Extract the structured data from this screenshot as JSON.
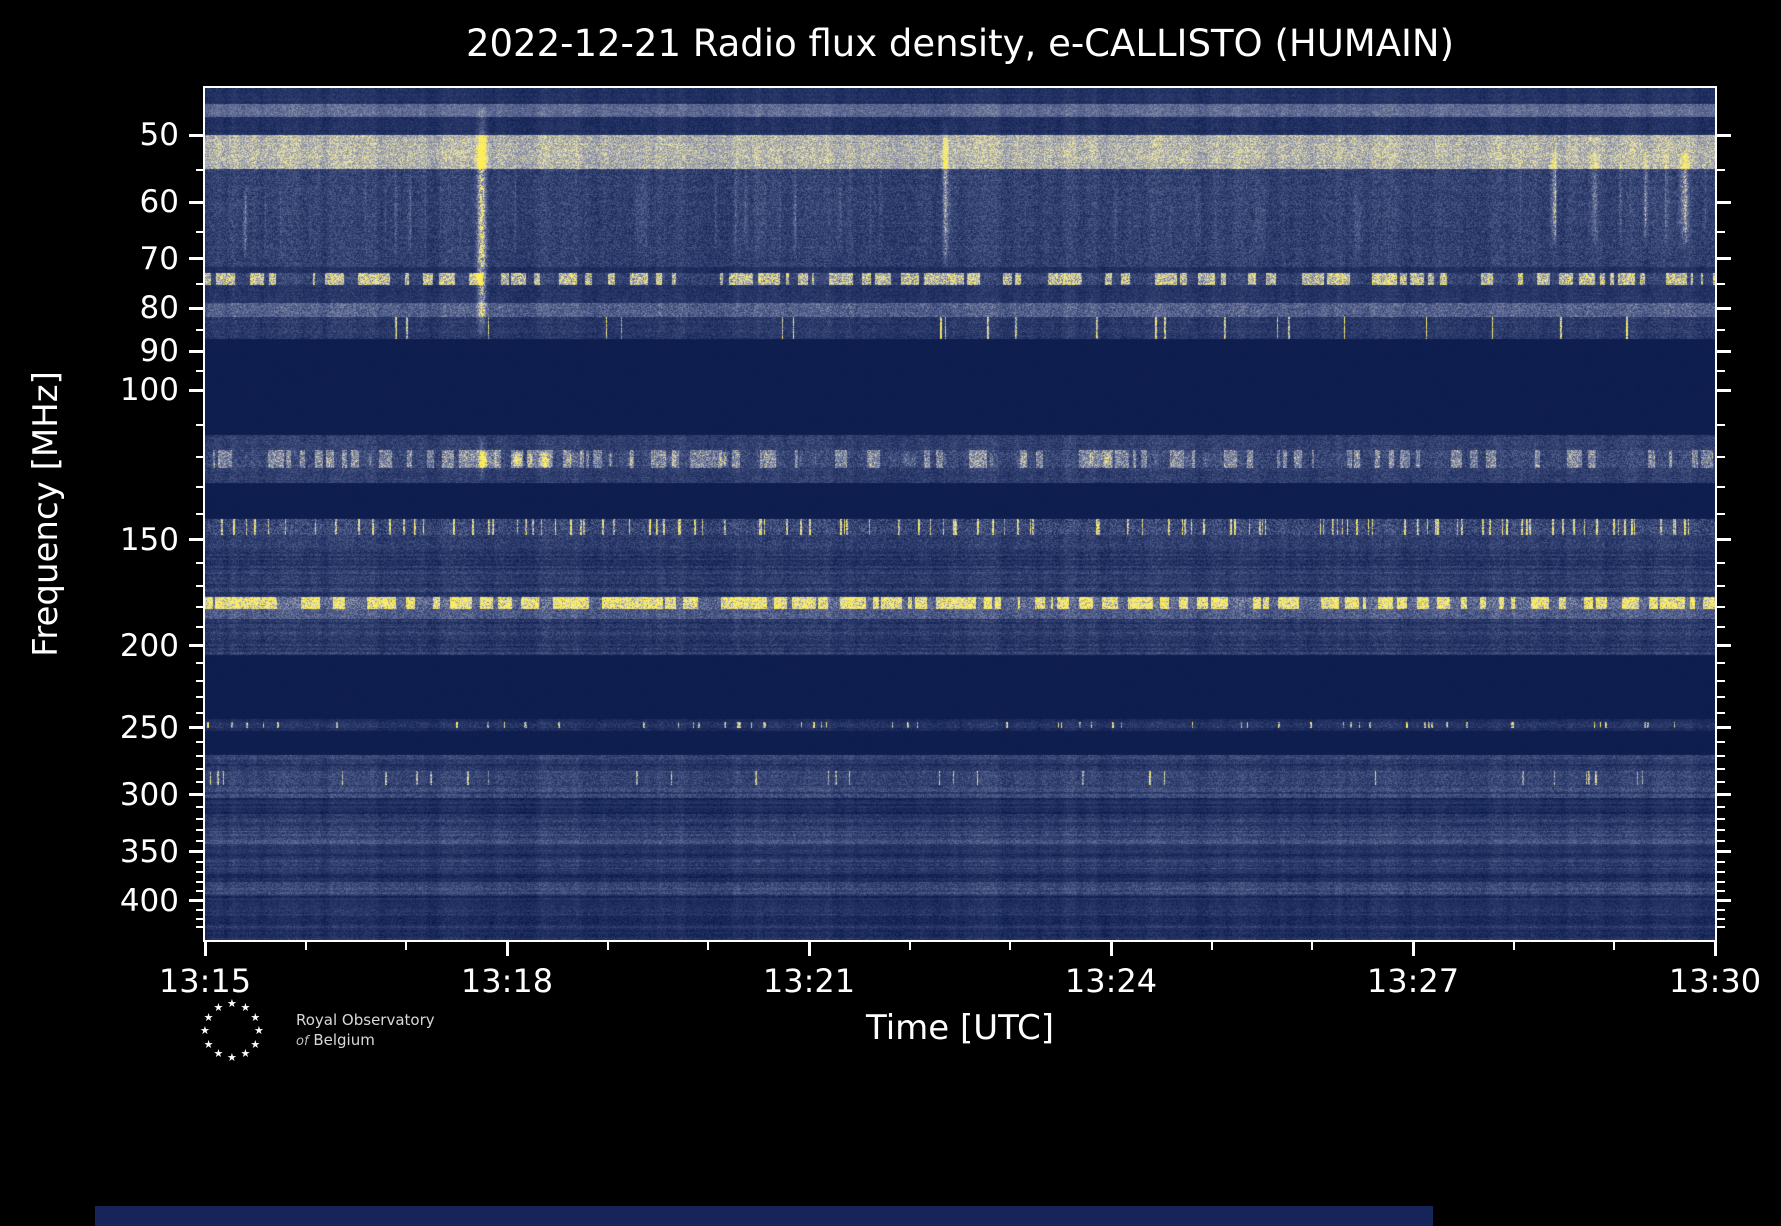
{
  "title": "2022-12-21 Radio flux density, e-CALLISTO (HUMAIN)",
  "axes": {
    "xlabel": "Time [UTC]",
    "ylabel": "Frequency [MHz]"
  },
  "footer": {
    "org_line1": "Royal Observatory",
    "org_line2_prefix": "of",
    "org_line2": "Belgium"
  },
  "chart_data": {
    "type": "heatmap",
    "title": "2022-12-21 Radio flux density, e-CALLISTO (HUMAIN)",
    "xlabel": "Time [UTC]",
    "ylabel": "Frequency [MHz]",
    "x_range_utc": [
      "13:15",
      "13:30"
    ],
    "x_major_ticks": [
      "13:15",
      "13:18",
      "13:21",
      "13:24",
      "13:27",
      "13:30"
    ],
    "x_minor_per_major": 3,
    "y_scale": "log",
    "y_range_mhz": [
      44,
      445
    ],
    "y_major_ticks": [
      50,
      60,
      70,
      80,
      90,
      100,
      150,
      200,
      250,
      300,
      350,
      400
    ],
    "y_minor_ticks": [
      55,
      65,
      75,
      85,
      95,
      110,
      120,
      130,
      140,
      160,
      170,
      180,
      190,
      210,
      220,
      230,
      240,
      260,
      270,
      280,
      290,
      310,
      320,
      330,
      340,
      360,
      370,
      380,
      390,
      410,
      420,
      430
    ],
    "colormap": [
      [
        0,
        "#081848"
      ],
      [
        0.3,
        "#2f3e6e"
      ],
      [
        0.55,
        "#64709a"
      ],
      [
        0.75,
        "#abacb0"
      ],
      [
        0.9,
        "#f0e9a8"
      ],
      [
        1,
        "#ffee50"
      ]
    ],
    "bands": [
      {
        "f": [
          44,
          46
        ],
        "base": 0.18,
        "noise": 0.12,
        "style": "noise"
      },
      {
        "f": [
          46,
          47.6
        ],
        "base": 0.48,
        "noise": 0.15,
        "style": "noise"
      },
      {
        "f": [
          47.6,
          50
        ],
        "base": 0.17,
        "noise": 0.13,
        "style": "noise"
      },
      {
        "f": [
          50,
          54.8
        ],
        "base": 0.72,
        "noise": 0.17,
        "style": "noise"
      },
      {
        "f": [
          54.8,
          71.5
        ],
        "base": 0.26,
        "noise": 0.19,
        "style": "noise"
      },
      {
        "f": [
          71.5,
          72.8
        ],
        "base": 0.18,
        "noise": 0.12,
        "style": "noise"
      },
      {
        "f": [
          72.8,
          75.2
        ],
        "base": 0.28,
        "noise": 0.2,
        "style": "dashed",
        "p": 0.55,
        "gain": 0.5
      },
      {
        "f": [
          75.2,
          79
        ],
        "base": 0.2,
        "noise": 0.14,
        "style": "noise"
      },
      {
        "f": [
          79,
          82
        ],
        "base": 0.42,
        "noise": 0.2,
        "style": "noise"
      },
      {
        "f": [
          82,
          87
        ],
        "base": 0.22,
        "noise": 0.16,
        "style": "spikes",
        "p": 0.015,
        "gain": 0.7
      },
      {
        "f": [
          87,
          113
        ],
        "base": 0.055,
        "noise": 0.015,
        "style": "flat"
      },
      {
        "f": [
          113,
          117.5
        ],
        "base": 0.26,
        "noise": 0.16,
        "style": "noise"
      },
      {
        "f": [
          117.5,
          123.5
        ],
        "base": 0.3,
        "noise": 0.22,
        "style": "dashed",
        "p": 0.4,
        "gain": 0.3
      },
      {
        "f": [
          123.5,
          128.5
        ],
        "base": 0.26,
        "noise": 0.16,
        "style": "noise"
      },
      {
        "f": [
          128.5,
          142
        ],
        "base": 0.055,
        "noise": 0.015,
        "style": "flat"
      },
      {
        "f": [
          142,
          148
        ],
        "base": 0.28,
        "noise": 0.26,
        "style": "spikes",
        "p": 0.08,
        "gain": 0.6
      },
      {
        "f": [
          148,
          153
        ],
        "base": 0.25,
        "noise": 0.18,
        "style": "noise"
      },
      {
        "f": [
          153,
          175.5
        ],
        "base": 0.22,
        "noise": 0.16,
        "style": "striated"
      },
      {
        "f": [
          175.5,
          181
        ],
        "base": 0.45,
        "noise": 0.25,
        "style": "dashed",
        "p": 0.65,
        "gain": 0.45
      },
      {
        "f": [
          181,
          186
        ],
        "base": 0.4,
        "noise": 0.2,
        "style": "noise"
      },
      {
        "f": [
          186,
          205
        ],
        "base": 0.24,
        "noise": 0.16,
        "style": "striated"
      },
      {
        "f": [
          205,
          244
        ],
        "base": 0.055,
        "noise": 0.015,
        "style": "flat"
      },
      {
        "f": [
          244,
          246
        ],
        "base": 0.14,
        "noise": 0.1,
        "style": "noise"
      },
      {
        "f": [
          246,
          250
        ],
        "base": 0.2,
        "noise": 0.16,
        "style": "spikes",
        "p": 0.04,
        "gain": 0.7
      },
      {
        "f": [
          250,
          252.5
        ],
        "base": 0.14,
        "noise": 0.1,
        "style": "noise"
      },
      {
        "f": [
          252.5,
          269
        ],
        "base": 0.055,
        "noise": 0.015,
        "style": "flat"
      },
      {
        "f": [
          269,
          272
        ],
        "base": 0.3,
        "noise": 0.15,
        "style": "noise"
      },
      {
        "f": [
          272,
          281
        ],
        "base": 0.21,
        "noise": 0.15,
        "style": "striated"
      },
      {
        "f": [
          281,
          292
        ],
        "base": 0.29,
        "noise": 0.17,
        "style": "spikes",
        "p": 0.02,
        "gain": 0.5
      },
      {
        "f": [
          292,
          303
        ],
        "base": 0.27,
        "noise": 0.16,
        "style": "striated"
      },
      {
        "f": [
          303,
          316
        ],
        "base": 0.15,
        "noise": 0.11,
        "style": "striated"
      },
      {
        "f": [
          316,
          331
        ],
        "base": 0.22,
        "noise": 0.15,
        "style": "striated"
      },
      {
        "f": [
          331,
          343
        ],
        "base": 0.32,
        "noise": 0.16,
        "style": "striated"
      },
      {
        "f": [
          343,
          358
        ],
        "base": 0.17,
        "noise": 0.12,
        "style": "striated"
      },
      {
        "f": [
          358,
          367
        ],
        "base": 0.26,
        "noise": 0.15,
        "style": "striated"
      },
      {
        "f": [
          367,
          380
        ],
        "base": 0.16,
        "noise": 0.12,
        "style": "striated"
      },
      {
        "f": [
          380,
          394
        ],
        "base": 0.29,
        "noise": 0.16,
        "style": "striated"
      },
      {
        "f": [
          394,
          407
        ],
        "base": 0.15,
        "noise": 0.11,
        "style": "striated"
      },
      {
        "f": [
          407,
          416
        ],
        "base": 0.23,
        "noise": 0.14,
        "style": "striated"
      },
      {
        "f": [
          416,
          445
        ],
        "base": 0.18,
        "noise": 0.13,
        "style": "striated"
      }
    ],
    "events": [
      {
        "type": "burst",
        "time_frac": 0.183,
        "sigma": 0.003,
        "f": [
          46,
          87
        ],
        "gain": 0.6
      },
      {
        "type": "burst",
        "time_frac": 0.183,
        "sigma": 0.002,
        "f": [
          113,
          128
        ],
        "gain": 0.25
      },
      {
        "type": "burst",
        "time_frac": 0.49,
        "sigma": 0.0018,
        "f": [
          48,
          72
        ],
        "gain": 0.4
      },
      {
        "type": "patch",
        "t": [
          0.855,
          1.0
        ],
        "f": [
          52,
          68
        ],
        "gain": 0.55,
        "density": 0.45
      },
      {
        "type": "patch",
        "t": [
          0.01,
          0.08
        ],
        "f": [
          57,
          70
        ],
        "gain": 0.35,
        "density": 0.45
      },
      {
        "type": "patch",
        "t": [
          0.1,
          0.52
        ],
        "f": [
          54,
          70
        ],
        "gain": 0.24,
        "density": 0.4
      },
      {
        "type": "patch",
        "t": [
          0.52,
          0.8
        ],
        "f": [
          56,
          70
        ],
        "gain": 0.12,
        "density": 0.35
      },
      {
        "type": "patch",
        "t": [
          0.17,
          0.38
        ],
        "f": [
          118,
          123.5
        ],
        "gain": 0.5,
        "density": 0.55
      },
      {
        "type": "patch",
        "t": [
          0.38,
          0.68
        ],
        "f": [
          118,
          123.5
        ],
        "gain": 0.32,
        "density": 0.45
      },
      {
        "type": "patch",
        "t": [
          0.02,
          0.17
        ],
        "f": [
          118,
          123.5
        ],
        "gain": 0.25,
        "density": 0.4
      }
    ]
  }
}
